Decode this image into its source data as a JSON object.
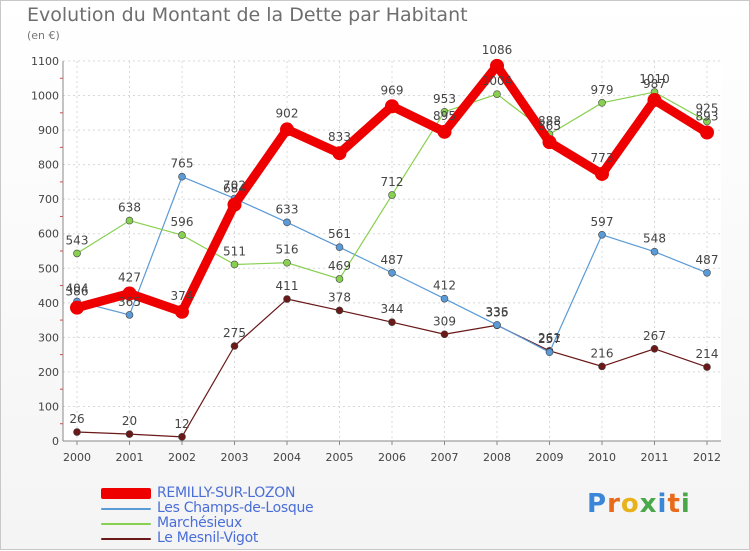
{
  "header": {
    "title": "Evolution du Montant de la Dette par Habitant",
    "subtitle": "(en €)"
  },
  "logo": {
    "letters": [
      "P",
      "r",
      "o",
      "x",
      "i",
      "t",
      "i"
    ],
    "colors": [
      "#3a86d8",
      "#e86a1a",
      "#e8b21a",
      "#4aa84a",
      "#3a86d8",
      "#e86a1a",
      "#4aa84a"
    ]
  },
  "chart_data": {
    "type": "line",
    "x": [
      "2000",
      "2001",
      "2002",
      "2003",
      "2004",
      "2005",
      "2006",
      "2007",
      "2008",
      "2009",
      "2010",
      "2011",
      "2012"
    ],
    "ylim": [
      0,
      1100
    ],
    "yticks": [
      "0",
      "100",
      "200",
      "300",
      "400",
      "500",
      "600",
      "700",
      "800",
      "900",
      "1000",
      "1100"
    ],
    "grid": true,
    "legend_position": "bottom-left",
    "series": [
      {
        "name": "REMILLY-SUR-LOZON",
        "color": "#ee0000",
        "values": [
          386,
          427,
          374,
          684,
          902,
          833,
          969,
          895,
          1086,
          865,
          773,
          987,
          893
        ]
      },
      {
        "name": "Les Champs-de-Losque",
        "color": "#5a9ad6",
        "values": [
          404,
          365,
          765,
          702,
          633,
          561,
          487,
          412,
          336,
          257,
          597,
          548,
          487
        ]
      },
      {
        "name": "Marchésieux",
        "color": "#88d050",
        "values": [
          543,
          638,
          596,
          511,
          516,
          469,
          712,
          953,
          1004,
          888,
          979,
          1010,
          925
        ]
      },
      {
        "name": "Le Mesnil-Vigot",
        "color": "#6a1818",
        "values": [
          26,
          20,
          12,
          275,
          411,
          378,
          344,
          309,
          335,
          261,
          216,
          267,
          214
        ]
      }
    ]
  }
}
